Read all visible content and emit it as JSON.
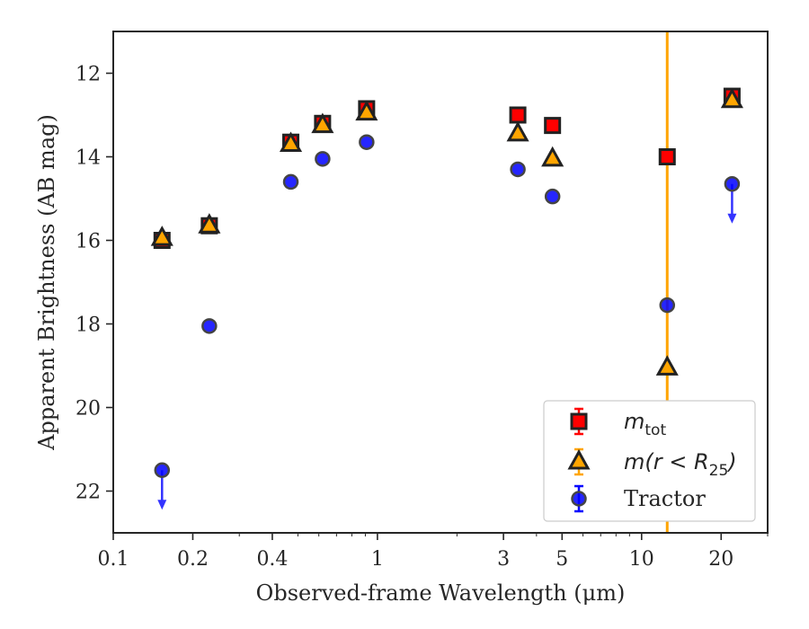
{
  "chart_data": {
    "type": "scatter",
    "xlabel": "Observed-frame Wavelength (μm)",
    "ylabel": "Apparent Brightness (AB mag)",
    "xscale": "log",
    "xlim": [
      0.1,
      30
    ],
    "ylim": [
      23,
      11
    ],
    "y_inverted": true,
    "grid": false,
    "x_ticks": [
      0.1,
      0.2,
      0.4,
      1,
      3,
      5,
      10,
      20
    ],
    "x_tick_labels": [
      "0.1",
      "0.2",
      "0.4",
      "1",
      "3",
      "5",
      "10",
      "20"
    ],
    "y_ticks": [
      12,
      14,
      16,
      18,
      20,
      22
    ],
    "y_tick_labels": [
      "12",
      "14",
      "16",
      "18",
      "20",
      "22"
    ],
    "vline": {
      "x": 12.5,
      "color": "#FFA500"
    },
    "legend_position": "lower-right",
    "series": [
      {
        "name": "m_tot",
        "legend_main": "m",
        "legend_sub": "tot",
        "marker": "square",
        "color": "#FF0000",
        "edgecolor": "#222222",
        "points": [
          {
            "x": 0.153,
            "y": 16.0
          },
          {
            "x": 0.231,
            "y": 15.65
          },
          {
            "x": 0.47,
            "y": 13.65
          },
          {
            "x": 0.62,
            "y": 13.2
          },
          {
            "x": 0.91,
            "y": 12.85
          },
          {
            "x": 3.4,
            "y": 13.0
          },
          {
            "x": 4.6,
            "y": 13.25
          },
          {
            "x": 12.5,
            "y": 14.0
          },
          {
            "x": 22.0,
            "y": 12.55
          }
        ]
      },
      {
        "name": "m(r < R_25)",
        "legend_main": "m(r < R",
        "legend_sub": "25",
        "legend_close": ")",
        "marker": "triangle",
        "color": "#FFA500",
        "edgecolor": "#222222",
        "points": [
          {
            "x": 0.153,
            "y": 15.95
          },
          {
            "x": 0.231,
            "y": 15.65
          },
          {
            "x": 0.47,
            "y": 13.7
          },
          {
            "x": 0.62,
            "y": 13.25
          },
          {
            "x": 0.91,
            "y": 12.95
          },
          {
            "x": 3.4,
            "y": 13.45
          },
          {
            "x": 4.6,
            "y": 14.05
          },
          {
            "x": 12.5,
            "y": 19.05
          },
          {
            "x": 22.0,
            "y": 12.65
          }
        ]
      },
      {
        "name": "Tractor",
        "legend_main": "Tractor",
        "marker": "circle",
        "color": "#0000FF",
        "edgecolor": "#444444",
        "points": [
          {
            "x": 0.153,
            "y": 21.5,
            "upper_limit": true
          },
          {
            "x": 0.231,
            "y": 18.05
          },
          {
            "x": 0.47,
            "y": 14.6
          },
          {
            "x": 0.62,
            "y": 14.05
          },
          {
            "x": 0.91,
            "y": 13.65
          },
          {
            "x": 3.4,
            "y": 14.3
          },
          {
            "x": 4.6,
            "y": 14.95
          },
          {
            "x": 12.5,
            "y": 17.55
          },
          {
            "x": 22.0,
            "y": 14.65,
            "upper_limit": true
          }
        ]
      }
    ]
  }
}
